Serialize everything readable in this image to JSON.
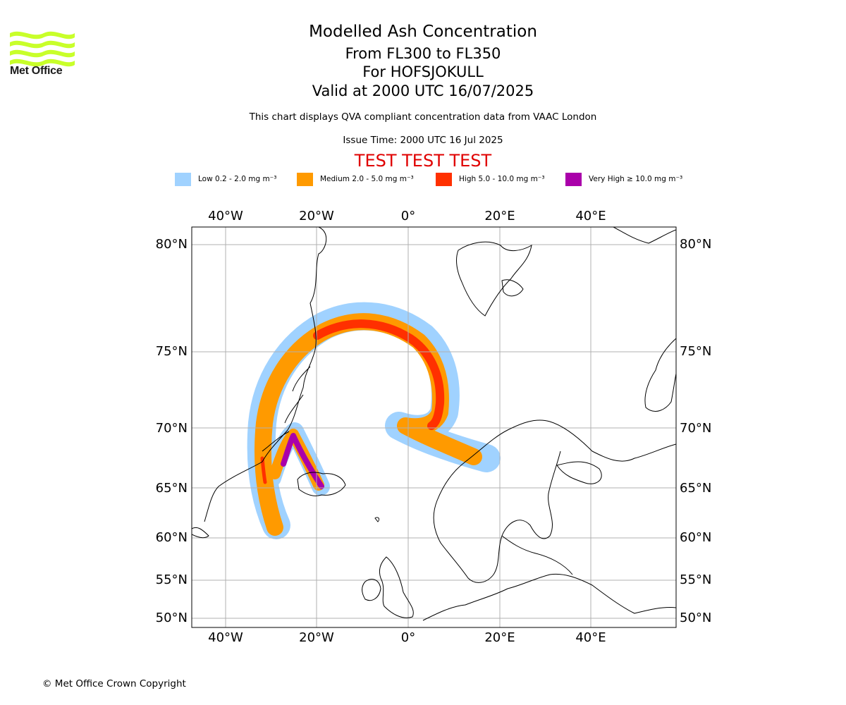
{
  "logo": {
    "icon": "met-office-wave-icon",
    "text": "Met Office",
    "color": "#c8ff2a"
  },
  "title": {
    "line1": "Modelled Ash Concentration",
    "line2": "From FL300 to FL350",
    "line3": "For HOFSJOKULL",
    "line4": "Valid at 2000 UTC 16/07/2025"
  },
  "subtitle": "This chart displays QVA compliant concentration data from VAAC London",
  "issue_time": "Issue Time: 2000 UTC 16 Jul 2025",
  "test_banner": "TEST TEST TEST",
  "legend": [
    {
      "name": "Low",
      "label": "Low 0.2 - 2.0 mg m⁻³",
      "color": "#a0d2ff"
    },
    {
      "name": "Medium",
      "label": "Medium 2.0 - 5.0 mg m⁻³",
      "color": "#ff9a00"
    },
    {
      "name": "High",
      "label": "High 5.0 - 10.0 mg m⁻³",
      "color": "#ff3000"
    },
    {
      "name": "Very High",
      "label": "Very High  ≥  10.0 mg m⁻³",
      "color": "#aa00aa"
    }
  ],
  "map": {
    "longitude_labels": [
      "40°W",
      "20°W",
      "0°",
      "20°E",
      "40°E"
    ],
    "latitude_labels": [
      "80°N",
      "75°N",
      "70°N",
      "65°N",
      "60°N",
      "55°N",
      "50°N"
    ],
    "gridline_color": "#b0b0b0",
    "coastline_color": "#000000"
  },
  "copyright": "© Met Office Crown Copyright"
}
